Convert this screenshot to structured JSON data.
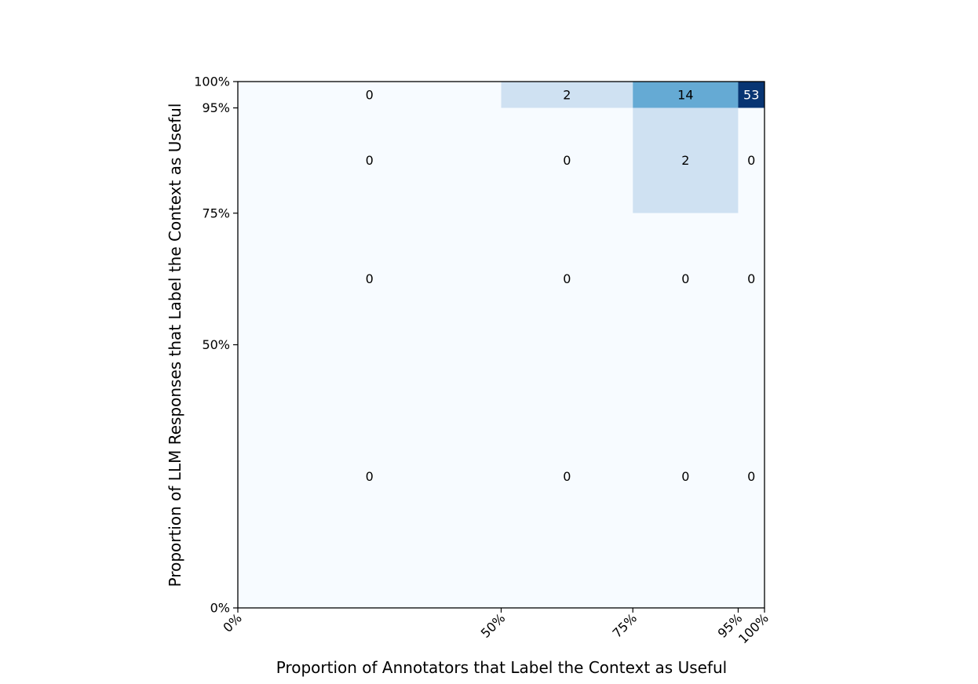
{
  "chart_data": {
    "type": "heatmap",
    "title": "",
    "xlabel": "Proportion of Annotators that Label the Context as Useful",
    "ylabel": "Proportion of LLM Responses that Label the Context as Useful",
    "x_bin_edges": [
      0,
      50,
      75,
      95,
      100
    ],
    "y_bin_edges": [
      0,
      50,
      75,
      95,
      100
    ],
    "x_tick_labels": [
      "0%",
      "50%",
      "75%",
      "95%",
      "100%"
    ],
    "y_tick_labels": [
      "0%",
      "50%",
      "75%",
      "95%",
      "100%"
    ],
    "xlim": [
      0,
      100
    ],
    "ylim": [
      0,
      100
    ],
    "colormap": "Blues",
    "color_range": [
      0,
      53
    ],
    "grid": false,
    "colorbar": false,
    "rows_top_to_bottom": [
      "95%-100%",
      "75%-95%",
      "50%-75%",
      "0%-50%"
    ],
    "columns_left_to_right": [
      "0%-50%",
      "50%-75%",
      "75%-95%",
      "95%-100%"
    ],
    "values": [
      [
        0,
        2,
        14,
        53
      ],
      [
        0,
        0,
        2,
        0
      ],
      [
        0,
        0,
        0,
        0
      ],
      [
        0,
        0,
        0,
        0
      ]
    ]
  }
}
